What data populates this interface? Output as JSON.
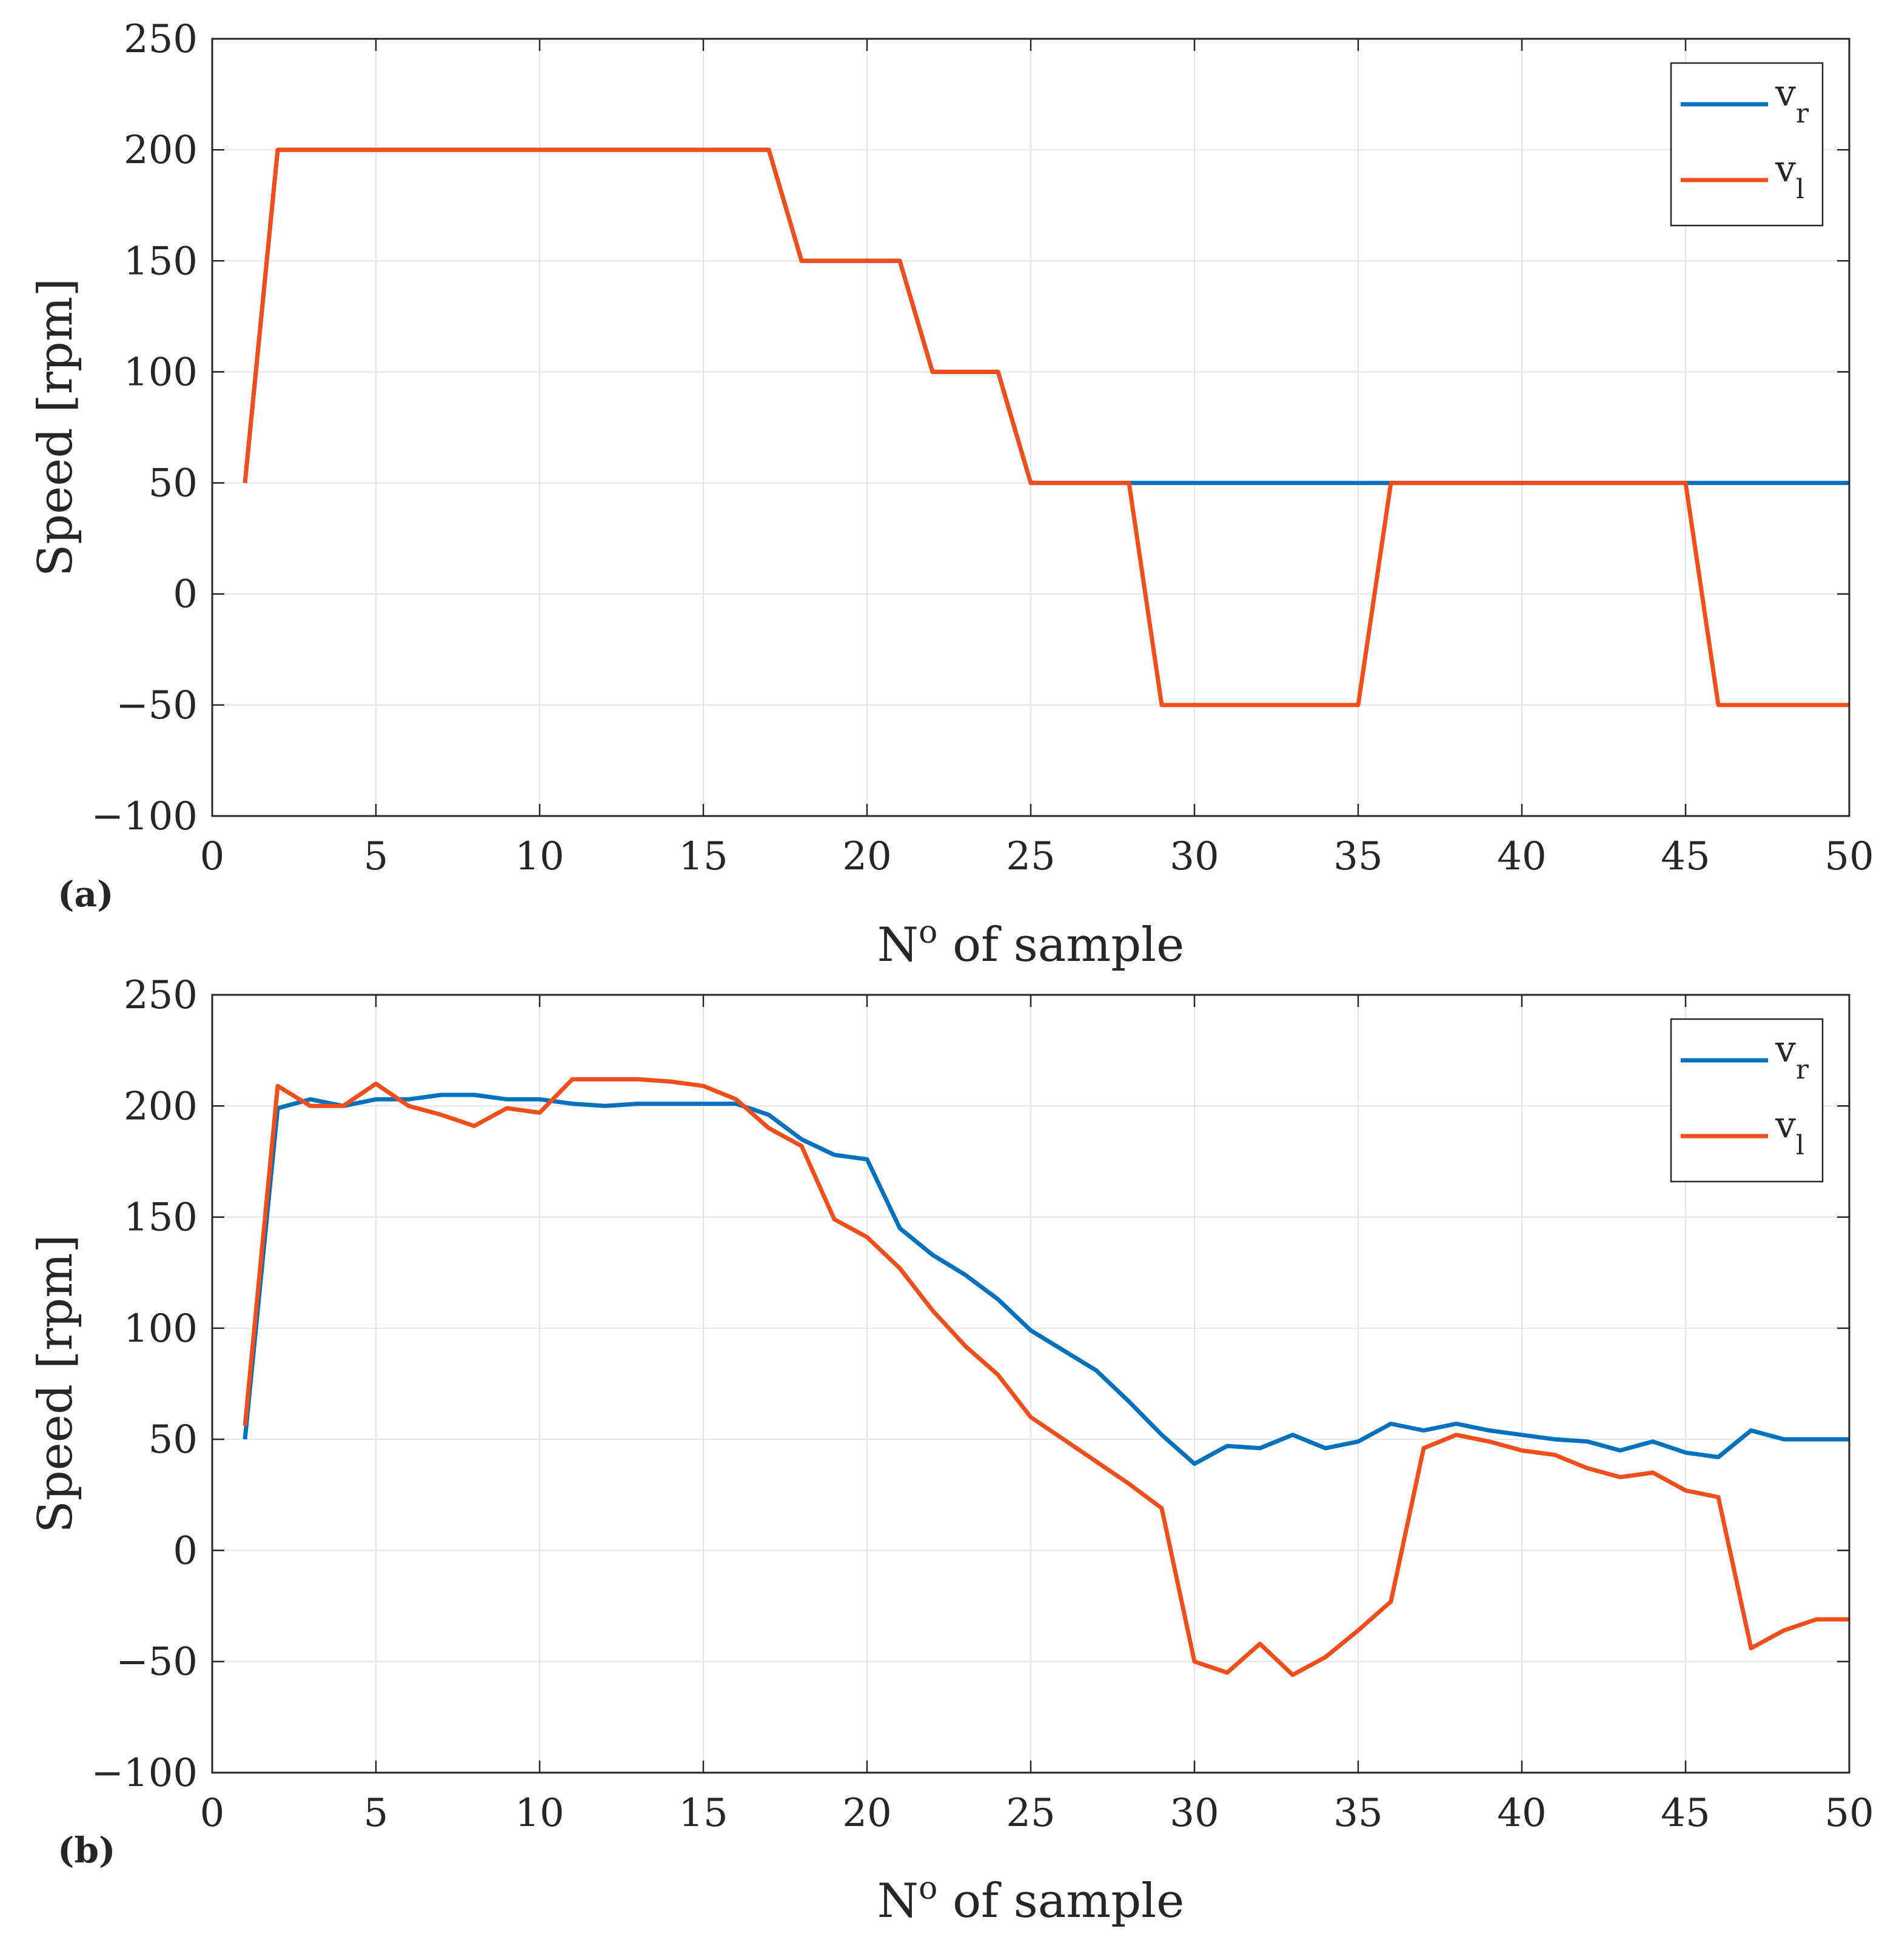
{
  "colors": {
    "series_r": "#0072BD",
    "series_l": "#F24E1B",
    "grid": "#e6e6e6",
    "axis": "#262626"
  },
  "chart_data": [
    {
      "type": "line",
      "panel_label": "(a)",
      "xlabel_main": "N",
      "xlabel_sup": "o",
      "xlabel_rest": " of sample",
      "ylabel": "Speed [rpm]",
      "xlim": [
        0,
        50
      ],
      "ylim": [
        -100,
        250
      ],
      "xticks": [
        "0",
        "5",
        "10",
        "15",
        "20",
        "25",
        "30",
        "35",
        "40",
        "45",
        "50"
      ],
      "yticks": [
        "250",
        "200",
        "150",
        "100",
        "50",
        "0",
        "−50",
        "−100"
      ],
      "legend_position": "top-right",
      "series": [
        {
          "name": "v",
          "sub": "r",
          "color": "#0072BD",
          "x": [
            1,
            2,
            17,
            18,
            21,
            22,
            24,
            25,
            28,
            36,
            45,
            50
          ],
          "y": [
            50,
            200,
            200,
            150,
            150,
            100,
            100,
            50,
            50,
            50,
            50,
            50
          ]
        },
        {
          "name": "v",
          "sub": "l",
          "color": "#F24E1B",
          "x": [
            1,
            2,
            17,
            18,
            21,
            22,
            24,
            25,
            28,
            29,
            35,
            36,
            45,
            46,
            50
          ],
          "y": [
            50,
            200,
            200,
            150,
            150,
            100,
            100,
            50,
            50,
            -50,
            -50,
            50,
            50,
            -50,
            -50
          ]
        }
      ]
    },
    {
      "type": "line",
      "panel_label": "(b)",
      "xlabel_main": "N",
      "xlabel_sup": "o",
      "xlabel_rest": " of sample",
      "ylabel": "Speed [rpm]",
      "xlim": [
        0,
        50
      ],
      "ylim": [
        -100,
        250
      ],
      "xticks": [
        "0",
        "5",
        "10",
        "15",
        "20",
        "25",
        "30",
        "35",
        "40",
        "45",
        "50"
      ],
      "yticks": [
        "250",
        "200",
        "150",
        "100",
        "50",
        "0",
        "−50",
        "−100"
      ],
      "legend_position": "top-right",
      "series": [
        {
          "name": "v",
          "sub": "r",
          "color": "#0072BD",
          "x": [
            1,
            2,
            3,
            4,
            5,
            6,
            7,
            8,
            9,
            10,
            11,
            12,
            13,
            14,
            15,
            16,
            17,
            18,
            19,
            20,
            21,
            22,
            23,
            24,
            25,
            26,
            27,
            28,
            29,
            30,
            31,
            32,
            33,
            34,
            35,
            36,
            37,
            38,
            39,
            40,
            41,
            42,
            43,
            44,
            45,
            46,
            47,
            48,
            49,
            50
          ],
          "y": [
            50,
            199,
            203,
            200,
            203,
            203,
            205,
            205,
            203,
            203,
            201,
            200,
            201,
            201,
            201,
            201,
            196,
            185,
            178,
            176,
            145,
            133,
            124,
            113,
            99,
            90,
            81,
            67,
            52,
            39,
            47,
            46,
            52,
            46,
            49,
            57,
            54,
            57,
            54,
            52,
            50,
            49,
            45,
            49,
            44,
            42,
            54,
            50,
            50,
            50
          ]
        },
        {
          "name": "v",
          "sub": "l",
          "color": "#F24E1B",
          "x": [
            1,
            2,
            3,
            4,
            5,
            6,
            7,
            8,
            9,
            10,
            11,
            12,
            13,
            14,
            15,
            16,
            17,
            18,
            19,
            20,
            21,
            22,
            23,
            24,
            25,
            26,
            27,
            28,
            29,
            30,
            31,
            32,
            33,
            34,
            35,
            36,
            37,
            38,
            39,
            40,
            41,
            42,
            43,
            44,
            45,
            46,
            47,
            48,
            49,
            50
          ],
          "y": [
            56,
            209,
            200,
            200,
            210,
            200,
            196,
            191,
            199,
            197,
            212,
            212,
            212,
            211,
            209,
            203,
            190,
            182,
            149,
            141,
            127,
            108,
            92,
            79,
            60,
            50,
            40,
            30,
            19,
            -50,
            -55,
            -42,
            -56,
            -48,
            -36,
            -23,
            46,
            52,
            49,
            45,
            43,
            37,
            33,
            35,
            27,
            24,
            -44,
            -36,
            -31,
            -31
          ]
        }
      ]
    }
  ]
}
